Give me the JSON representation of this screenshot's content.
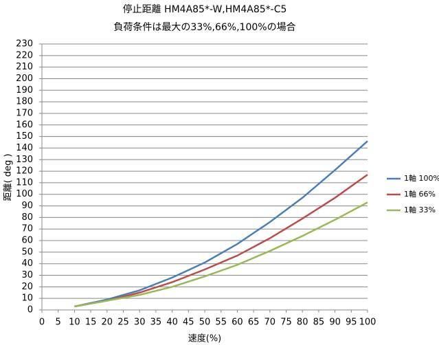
{
  "chart_data": {
    "type": "line",
    "title": "停止距離 HM4A85*-W,HM4A85*-C5",
    "subtitle": "負荷条件は最大の33%,66%,100%の場合",
    "x_label": "速度(%)",
    "y_label": "距離( deg )",
    "x": [
      10,
      20,
      30,
      40,
      50,
      60,
      70,
      80,
      90,
      100
    ],
    "series": [
      {
        "name": "1軸 100%",
        "color": "#4a7ebb",
        "values": [
          3,
          9,
          17,
          28,
          41,
          57,
          76,
          97,
          121,
          146
        ]
      },
      {
        "name": "1軸 66%",
        "color": "#be4b48",
        "values": [
          3,
          8,
          15,
          24,
          35,
          47,
          62,
          79,
          97,
          117
        ]
      },
      {
        "name": "1軸 33%",
        "color": "#98b954",
        "values": [
          3,
          8,
          13,
          20,
          29,
          39,
          51,
          64,
          78,
          93
        ]
      }
    ],
    "xlim": [
      0,
      100
    ],
    "xticks": [
      0,
      5,
      10,
      15,
      20,
      25,
      30,
      35,
      40,
      45,
      50,
      55,
      60,
      65,
      70,
      75,
      80,
      85,
      90,
      95,
      100
    ],
    "ylim": [
      0,
      230
    ],
    "yticks": [
      0,
      10,
      20,
      30,
      40,
      50,
      60,
      70,
      80,
      90,
      100,
      110,
      120,
      130,
      140,
      150,
      160,
      170,
      180,
      190,
      200,
      210,
      220,
      230
    ],
    "grid": true,
    "legend": "right"
  }
}
